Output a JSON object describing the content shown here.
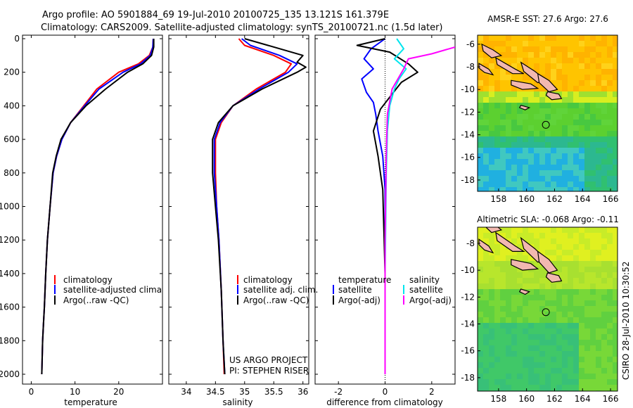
{
  "header": {
    "line1": "Argo profile: AO 5901884_69 19-Jul-2010 20100725_135 13.121S 161.379E",
    "line2": "Climatology: CARS2009. Satellite-adjusted climatology: synTS_20100721.nc (1.5d later)"
  },
  "credit": {
    "project": "US ARGO PROJECT",
    "pi": "PI: STEPHEN RISER",
    "timestamp": "CSIRO 28-Jul-2010 10:30:52"
  },
  "colors": {
    "climatology": "#ff0000",
    "satellite": "#0000ff",
    "argo": "#000000",
    "salinity_satellite": "#00e5ee",
    "salinity_argo": "#ff00ff",
    "land": "#f2b8b0"
  },
  "chart_data": [
    {
      "type": "line",
      "name": "temperature-panel",
      "xlabel": "temperature",
      "ylabel": "",
      "xlim": [
        -2,
        30
      ],
      "ylim": [
        0,
        2000
      ],
      "y_reversed": true,
      "xticks": [
        0,
        10,
        20
      ],
      "yticks": [
        0,
        200,
        400,
        600,
        800,
        1000,
        1200,
        1400,
        1600,
        1800,
        2000
      ],
      "legend": [
        "climatology",
        "satellite-adjusted climatology",
        "Argo(..raw -QC)"
      ],
      "series": [
        {
          "name": "climatology",
          "color": "#ff0000",
          "x": [
            27.9,
            27.8,
            27.0,
            24.5,
            20.0,
            15.0,
            12.0,
            9.0,
            7.0,
            5.8,
            5.0,
            4.3,
            3.7,
            3.3,
            3.0,
            2.8,
            2.6,
            2.5,
            2.4
          ],
          "y": [
            0,
            50,
            100,
            150,
            200,
            300,
            400,
            500,
            600,
            700,
            800,
            1000,
            1200,
            1400,
            1600,
            1700,
            1800,
            1900,
            2000
          ]
        },
        {
          "name": "satellite-adjusted climatology",
          "color": "#0000ff",
          "x": [
            27.9,
            27.8,
            27.2,
            25.0,
            21.0,
            15.5,
            12.2,
            9.0,
            7.0,
            5.8,
            5.0,
            4.3,
            3.7,
            3.3,
            3.0,
            2.8,
            2.6,
            2.5,
            2.4
          ],
          "y": [
            0,
            50,
            100,
            150,
            200,
            300,
            400,
            500,
            600,
            700,
            800,
            1000,
            1200,
            1400,
            1600,
            1700,
            1800,
            1900,
            2000
          ]
        },
        {
          "name": "Argo(..raw -QC)",
          "color": "#000000",
          "x": [
            28.0,
            28.0,
            27.5,
            25.5,
            22.0,
            17.0,
            12.5,
            9.0,
            6.8,
            5.7,
            4.9,
            4.3,
            3.7,
            3.3,
            3.0,
            2.8,
            2.6,
            2.5,
            2.4
          ],
          "y": [
            0,
            50,
            100,
            150,
            200,
            300,
            400,
            500,
            600,
            700,
            800,
            1000,
            1200,
            1400,
            1600,
            1700,
            1800,
            1900,
            2000
          ]
        }
      ]
    },
    {
      "type": "line",
      "name": "salinity-panel",
      "xlabel": "salinity",
      "ylabel": "",
      "xlim": [
        33.7,
        36.1
      ],
      "ylim": [
        0,
        2000
      ],
      "y_reversed": true,
      "xticks": [
        34,
        34.5,
        35,
        35.5,
        36
      ],
      "legend": [
        "climatology",
        "satellite adj. clim.",
        "Argo(..raw -QC)"
      ],
      "series": [
        {
          "name": "climatology",
          "color": "#ff0000",
          "x": [
            34.9,
            35.0,
            35.5,
            35.8,
            35.7,
            35.2,
            34.8,
            34.6,
            34.5,
            34.5,
            34.52,
            34.56,
            34.6,
            34.63,
            34.65
          ],
          "y": [
            0,
            40,
            100,
            150,
            200,
            300,
            400,
            500,
            600,
            800,
            1000,
            1200,
            1500,
            1800,
            2000
          ]
        },
        {
          "name": "satellite adj. clim.",
          "color": "#0000ff",
          "x": [
            34.95,
            35.1,
            35.6,
            35.9,
            35.75,
            35.25,
            34.8,
            34.58,
            34.48,
            34.48,
            34.52,
            34.56,
            34.6,
            34.63,
            34.66
          ],
          "y": [
            0,
            40,
            100,
            150,
            200,
            300,
            400,
            500,
            600,
            800,
            1000,
            1200,
            1500,
            1800,
            2000
          ]
        },
        {
          "name": "Argo(..raw -QC)",
          "color": "#000000",
          "x": [
            35.0,
            35.4,
            36.0,
            35.9,
            36.05,
            35.9,
            35.3,
            34.8,
            34.55,
            34.45,
            34.45,
            34.5,
            34.55,
            34.6,
            34.63,
            34.66
          ],
          "y": [
            0,
            40,
            100,
            140,
            170,
            200,
            300,
            400,
            500,
            600,
            800,
            1000,
            1200,
            1500,
            1800,
            2000
          ]
        }
      ]
    },
    {
      "type": "line",
      "name": "difference-panel",
      "xlabel": "difference from climatology",
      "ylabel": "",
      "xlim": [
        -3,
        3
      ],
      "ylim": [
        0,
        2000
      ],
      "y_reversed": true,
      "xticks": [
        -2,
        0,
        2
      ],
      "legend_titles": [
        "temperature",
        "salinity"
      ],
      "legend": [
        "satellite",
        "Argo(-adj)",
        "satellite",
        "Argo(-adj)"
      ],
      "series": [
        {
          "name": "temperature satellite",
          "color": "#0000ff",
          "x": [
            0,
            -0.6,
            -0.9,
            -0.5,
            -1.0,
            -0.8,
            -0.5,
            -0.4,
            -0.3,
            -0.1,
            0,
            0,
            0
          ],
          "y": [
            0,
            60,
            120,
            180,
            240,
            320,
            380,
            450,
            550,
            700,
            900,
            1400,
            2000
          ]
        },
        {
          "name": "temperature Argo(-adj)",
          "color": "#000000",
          "x": [
            0,
            -1.2,
            0.2,
            1.0,
            1.4,
            0.7,
            0.3,
            -0.2,
            -0.5,
            -0.3,
            -0.1,
            0,
            0
          ],
          "y": [
            0,
            40,
            80,
            150,
            200,
            260,
            330,
            420,
            550,
            700,
            900,
            1400,
            2000
          ]
        },
        {
          "name": "salinity satellite",
          "color": "#00e5ee",
          "x": [
            0.5,
            0.8,
            0.4,
            0.9,
            0.6,
            0.4,
            0.2,
            0.1,
            0.05,
            0,
            0
          ],
          "y": [
            0,
            60,
            120,
            180,
            240,
            300,
            400,
            550,
            800,
            1400,
            2000
          ]
        },
        {
          "name": "salinity Argo(-adj)",
          "color": "#ff00ff",
          "x": [
            3,
            2.0,
            1.0,
            0.8,
            0.3,
            0.1,
            0.05,
            0,
            0
          ],
          "y": [
            50,
            90,
            120,
            180,
            300,
            450,
            700,
            1200,
            2000
          ]
        }
      ]
    },
    {
      "type": "heatmap",
      "name": "sst-map",
      "title": "AMSR-E SST: 27.6 Argo: 27.6",
      "xlim": [
        156.5,
        166.5
      ],
      "ylim": [
        -19,
        -5.2
      ],
      "xticks": [
        158,
        160,
        162,
        164,
        166
      ],
      "yticks": [
        -6,
        -8,
        -10,
        -12,
        -14,
        -16,
        -18
      ],
      "argo_position": {
        "lon": 161.38,
        "lat": -13.12
      }
    },
    {
      "type": "heatmap",
      "name": "sla-map",
      "title": "Altimetric SLA: -0.068 Argo: -0.11",
      "xlim": [
        156.5,
        166.5
      ],
      "ylim": [
        -19,
        -6.8
      ],
      "xticks": [
        158,
        160,
        162,
        164,
        166
      ],
      "yticks": [
        -8,
        -10,
        -12,
        -14,
        -16,
        -18
      ],
      "argo_position": {
        "lon": 161.38,
        "lat": -13.12
      }
    }
  ]
}
